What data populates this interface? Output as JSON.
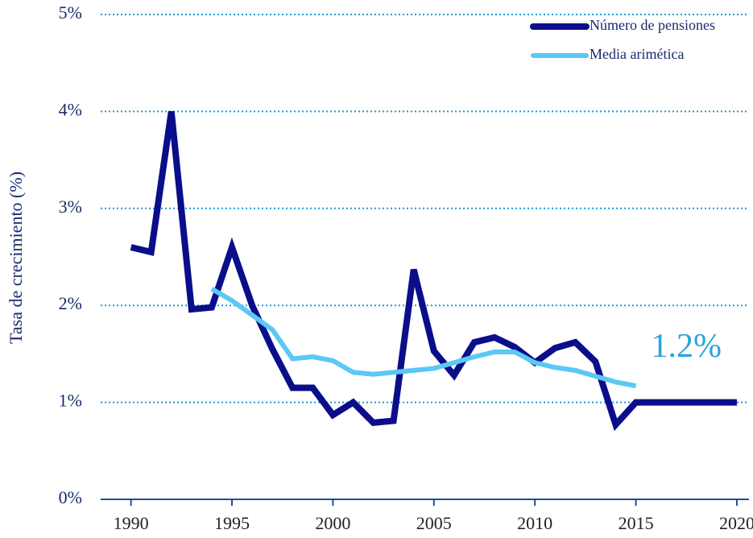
{
  "chart_data": {
    "type": "line",
    "y_label": "Tasa de crecimiento  (%)",
    "x": [
      1990,
      1991,
      1992,
      1993,
      1994,
      1995,
      1996,
      1997,
      1998,
      1999,
      2000,
      2001,
      2002,
      2003,
      2004,
      2005,
      2006,
      2007,
      2008,
      2009,
      2010,
      2011,
      2012,
      2013,
      2014,
      2015,
      2016,
      2017,
      2018,
      2019,
      2020
    ],
    "series": [
      {
        "name": "Número de pensiones",
        "color": "#0a0e8a",
        "values": [
          2.6,
          2.55,
          4.0,
          1.96,
          1.98,
          2.6,
          2.0,
          1.55,
          1.15,
          1.15,
          0.87,
          1.0,
          0.79,
          0.81,
          2.37,
          1.53,
          1.28,
          1.62,
          1.67,
          1.57,
          1.41,
          1.56,
          1.62,
          1.42,
          0.77,
          1.0,
          1.0,
          1.0,
          1.0,
          1.0,
          1.0
        ]
      },
      {
        "name": "Media arimética",
        "color": "#5bc8f5",
        "values": [
          null,
          null,
          null,
          null,
          2.17,
          2.05,
          1.9,
          1.75,
          1.45,
          1.47,
          1.43,
          1.31,
          1.29,
          1.31,
          1.33,
          1.35,
          1.41,
          1.47,
          1.52,
          1.52,
          1.41,
          1.36,
          1.33,
          1.27,
          1.21,
          1.17,
          null,
          null,
          null,
          null,
          null
        ]
      }
    ],
    "annotation": {
      "text": "1.2%",
      "x": 2017.5,
      "y": 1.55,
      "color": "#2aa3dc"
    },
    "xlim": [
      1988.5,
      2020.6
    ],
    "xticks": [
      1990,
      1995,
      2000,
      2005,
      2010,
      2015,
      2020
    ],
    "ylim": [
      0,
      5
    ],
    "yticks": [
      {
        "value": 0,
        "label": "0%"
      },
      {
        "value": 1,
        "label": "1%"
      },
      {
        "value": 2,
        "label": "2%"
      },
      {
        "value": 3,
        "label": "3%"
      },
      {
        "value": 4,
        "label": "4%"
      },
      {
        "value": 5,
        "label": "5%"
      }
    ],
    "grid": true,
    "grid_color": "#1e9bd7",
    "axis_color": "#1f4e9a",
    "legend": "upper right"
  }
}
